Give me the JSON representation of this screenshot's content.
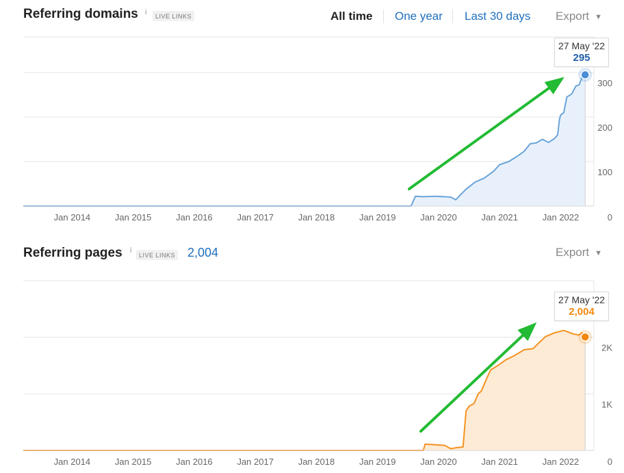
{
  "domains": {
    "title": "Referring domains",
    "info": "i",
    "badge": "LIVE LINKS",
    "tabs": [
      {
        "label": "All time",
        "active": true
      },
      {
        "label": "One year",
        "active": false
      },
      {
        "label": "Last 30 days",
        "active": false
      }
    ],
    "export_label": "Export",
    "tooltip": {
      "date": "27 May '22",
      "value": "295"
    }
  },
  "pages": {
    "title": "Referring pages",
    "info": "i",
    "badge": "LIVE LINKS",
    "total": "2,004",
    "export_label": "Export",
    "tooltip": {
      "date": "27 May '22",
      "value": "2,004"
    }
  },
  "colors": {
    "domains_line": "#6aa4d9",
    "domains_fill": "#e8f1fb",
    "domains_marker": "#4a8fd6",
    "domains_value": "#1f5fa8",
    "pages_line": "#f39220",
    "pages_fill": "#fdebd6",
    "pages_marker": "#f2870f",
    "pages_value": "#f08a10",
    "arrow": "#22bb33",
    "grid": "#e6e6e6",
    "axis_text": "#666666"
  },
  "chart_data": [
    {
      "type": "area",
      "title": "Referring domains",
      "x_tick_labels": [
        "Jan 2014",
        "Jan 2015",
        "Jan 2016",
        "Jan 2017",
        "Jan 2018",
        "Jan 2019",
        "Jan 2020",
        "Jan 2021",
        "Jan 2022"
      ],
      "y_tick_labels": [
        "0",
        "100",
        "200",
        "300"
      ],
      "ylim": [
        0,
        380
      ],
      "x_range": [
        2013.2,
        2022.42
      ],
      "grid": true,
      "series": [
        {
          "x": [
            2013.2,
            2019.55,
            2019.62,
            2019.75,
            2019.95,
            2020.1,
            2020.2,
            2020.28,
            2020.35,
            2020.45,
            2020.6,
            2020.75,
            2020.9,
            2021.0,
            2021.15,
            2021.3,
            2021.4,
            2021.5,
            2021.6,
            2021.7,
            2021.8,
            2021.9,
            2021.95,
            2021.98,
            2022.0,
            2022.05,
            2022.1,
            2022.18,
            2022.25,
            2022.3,
            2022.35,
            2022.4
          ],
          "y": [
            0,
            0,
            22,
            21,
            22,
            21,
            20,
            14,
            24,
            38,
            54,
            63,
            78,
            93,
            100,
            113,
            123,
            140,
            142,
            150,
            143,
            152,
            160,
            195,
            205,
            210,
            245,
            252,
            270,
            272,
            290,
            295
          ]
        }
      ],
      "annotation": {
        "date": "27 May '22",
        "value": 295
      }
    },
    {
      "type": "area",
      "title": "Referring pages",
      "x_tick_labels": [
        "Jan 2014",
        "Jan 2015",
        "Jan 2016",
        "Jan 2017",
        "Jan 2018",
        "Jan 2019",
        "Jan 2020",
        "Jan 2021",
        "Jan 2022"
      ],
      "y_tick_labels": [
        "0",
        "1K",
        "2K"
      ],
      "ylim": [
        0,
        3000
      ],
      "x_range": [
        2013.2,
        2022.42
      ],
      "grid": true,
      "series": [
        {
          "x": [
            2013.2,
            2019.75,
            2019.78,
            2019.95,
            2020.1,
            2020.2,
            2020.3,
            2020.4,
            2020.45,
            2020.5,
            2020.58,
            2020.65,
            2020.7,
            2020.78,
            2020.85,
            2021.0,
            2021.1,
            2021.25,
            2021.4,
            2021.55,
            2021.65,
            2021.75,
            2021.9,
            2022.05,
            2022.2,
            2022.3,
            2022.35,
            2022.4
          ],
          "y": [
            0,
            0,
            110,
            100,
            90,
            30,
            50,
            60,
            700,
            780,
            830,
            1000,
            1050,
            1250,
            1420,
            1520,
            1600,
            1680,
            1780,
            1800,
            1910,
            2010,
            2080,
            2120,
            2060,
            2040,
            2080,
            2004
          ]
        }
      ],
      "annotation": {
        "date": "27 May '22",
        "value": 2004
      }
    }
  ]
}
